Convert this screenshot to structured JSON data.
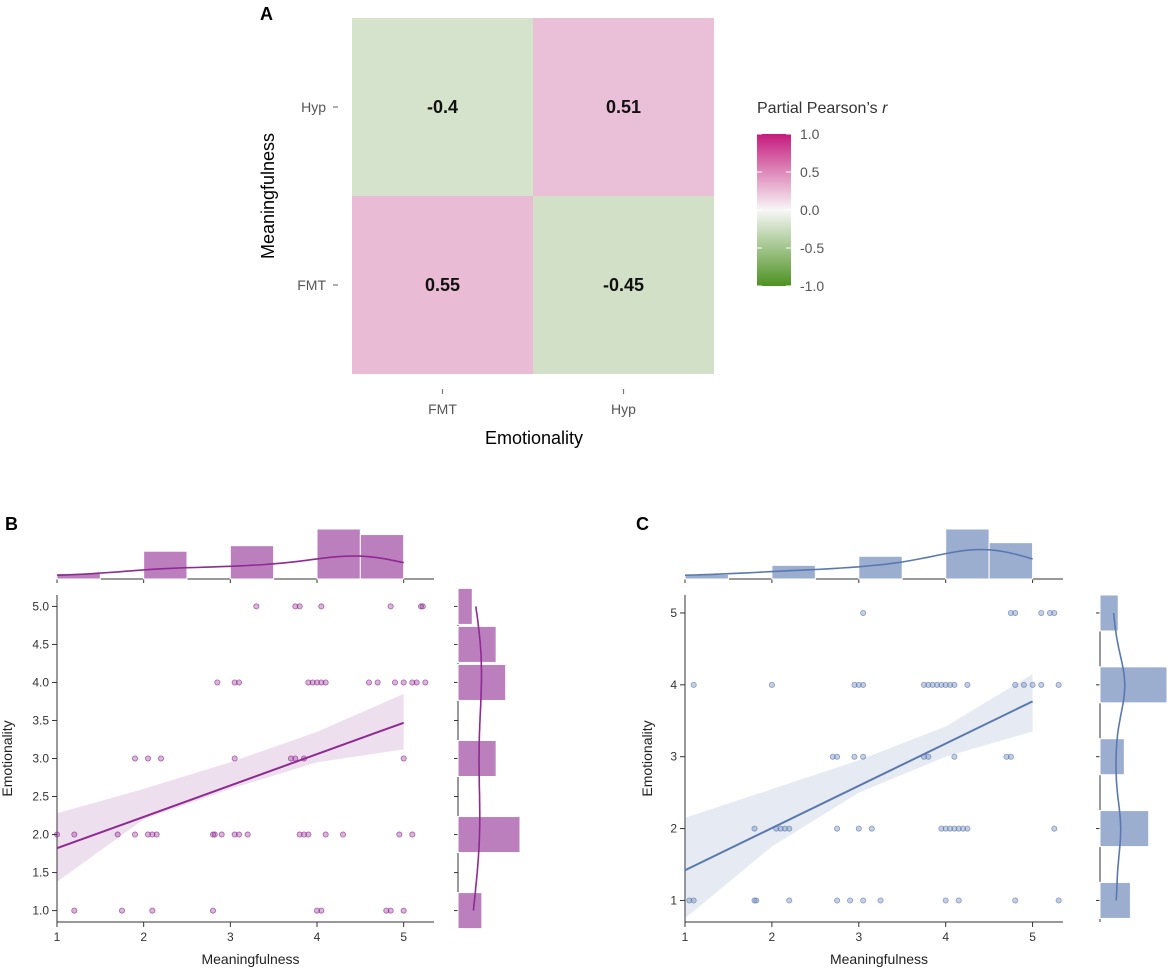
{
  "chart_data": [
    {
      "panel": "A",
      "type": "heatmap",
      "xlabel": "Emotionality",
      "ylabel": "Meaningfulness",
      "x_categories": [
        "FMT",
        "Hyp"
      ],
      "y_categories": [
        "FMT",
        "Hyp"
      ],
      "cells": [
        {
          "x": "FMT",
          "y": "Hyp",
          "value": -0.4,
          "label": "-0.4"
        },
        {
          "x": "Hyp",
          "y": "Hyp",
          "value": 0.51,
          "label": "0.51"
        },
        {
          "x": "FMT",
          "y": "FMT",
          "value": 0.55,
          "label": "0.55"
        },
        {
          "x": "Hyp",
          "y": "FMT",
          "value": -0.45,
          "label": "-0.45"
        }
      ],
      "legend": {
        "title": "Partial Pearson’s ",
        "title_italic": "r",
        "range": [
          -1.0,
          1.0
        ],
        "ticks": [
          "1.0",
          "0.5",
          "0.0",
          "-0.5",
          "-1.0"
        ],
        "colors": {
          "low": "#4d9221",
          "mid": "#f7f7f7",
          "high": "#c51b7d"
        }
      }
    },
    {
      "panel": "B",
      "type": "scatter",
      "xlabel": "Meaningfulness",
      "ylabel": "Emotionality",
      "xlim": [
        1,
        5.35
      ],
      "ylim": [
        0.85,
        5.15
      ],
      "xticks": [
        1,
        2,
        3,
        4,
        5
      ],
      "xtick_labels": [
        "1",
        "2",
        "3",
        "4",
        "5"
      ],
      "yticks": [
        1.0,
        1.5,
        2.0,
        2.5,
        3.0,
        3.5,
        4.0,
        4.5,
        5.0
      ],
      "ytick_labels": [
        "1.0",
        "1.5",
        "2.0",
        "2.5",
        "3.0",
        "3.5",
        "4.0",
        "4.5",
        "5.0"
      ],
      "color": "#8e2a91",
      "regression": {
        "x": [
          1,
          5
        ],
        "y": [
          1.82,
          3.47
        ]
      },
      "ci_upper": [
        [
          1,
          2.28
        ],
        [
          2,
          2.6
        ],
        [
          3,
          2.95
        ],
        [
          4,
          3.35
        ],
        [
          5,
          3.85
        ]
      ],
      "ci_lower": [
        [
          1,
          1.38
        ],
        [
          2,
          2.2
        ],
        [
          3,
          2.6
        ],
        [
          4,
          2.95
        ],
        [
          5,
          3.12
        ]
      ],
      "points": [
        [
          1.2,
          1
        ],
        [
          1.75,
          1
        ],
        [
          2.1,
          1
        ],
        [
          2.8,
          1
        ],
        [
          4.0,
          1
        ],
        [
          4.05,
          1
        ],
        [
          4.8,
          1
        ],
        [
          4.85,
          1
        ],
        [
          5.0,
          1
        ],
        [
          1.0,
          2
        ],
        [
          1.2,
          2
        ],
        [
          1.7,
          2
        ],
        [
          1.9,
          2
        ],
        [
          2.05,
          2
        ],
        [
          2.1,
          2
        ],
        [
          2.15,
          2
        ],
        [
          2.8,
          2
        ],
        [
          2.82,
          2
        ],
        [
          2.9,
          2
        ],
        [
          3.05,
          2
        ],
        [
          3.1,
          2
        ],
        [
          3.2,
          2
        ],
        [
          3.8,
          2
        ],
        [
          3.85,
          2
        ],
        [
          3.9,
          2
        ],
        [
          4.1,
          2
        ],
        [
          4.3,
          2
        ],
        [
          4.95,
          2
        ],
        [
          5.1,
          2
        ],
        [
          1.9,
          3
        ],
        [
          2.05,
          3
        ],
        [
          2.2,
          3
        ],
        [
          3.05,
          3
        ],
        [
          3.7,
          3
        ],
        [
          3.75,
          3
        ],
        [
          3.85,
          3
        ],
        [
          5.0,
          3
        ],
        [
          2.85,
          4
        ],
        [
          3.05,
          4
        ],
        [
          3.1,
          4
        ],
        [
          3.9,
          4
        ],
        [
          3.95,
          4
        ],
        [
          4.0,
          4
        ],
        [
          4.05,
          4
        ],
        [
          4.1,
          4
        ],
        [
          4.6,
          4
        ],
        [
          4.7,
          4
        ],
        [
          4.9,
          4
        ],
        [
          5.0,
          4
        ],
        [
          5.1,
          4
        ],
        [
          5.15,
          4
        ],
        [
          5.25,
          4
        ],
        [
          3.3,
          5
        ],
        [
          3.75,
          5
        ],
        [
          3.8,
          5
        ],
        [
          4.05,
          5
        ],
        [
          4.85,
          5
        ],
        [
          5.2,
          5
        ],
        [
          5.22,
          5
        ]
      ],
      "top_hist": {
        "bin_edges": [
          1,
          1.5,
          2,
          2.5,
          3,
          3.5,
          4,
          4.5,
          5
        ],
        "counts": [
          1,
          0,
          5,
          0,
          6,
          0,
          9,
          8
        ]
      },
      "right_hist": {
        "bins": [
          1.0,
          1.5,
          2.0,
          2.5,
          3.0,
          3.5,
          4.0,
          4.5,
          5.0
        ],
        "counts": [
          5,
          0,
          13,
          0,
          8,
          0,
          10,
          8,
          3
        ]
      }
    },
    {
      "panel": "C",
      "type": "scatter",
      "xlabel": "Meaningfulness",
      "ylabel": "Emotionality",
      "xlim": [
        1,
        5.35
      ],
      "ylim": [
        0.7,
        5.25
      ],
      "xticks": [
        1,
        2,
        3,
        4,
        5
      ],
      "xtick_labels": [
        "1",
        "2",
        "3",
        "4",
        "5"
      ],
      "yticks": [
        1,
        2,
        3,
        4,
        5
      ],
      "ytick_labels": [
        "1",
        "2",
        "3",
        "4",
        "5"
      ],
      "color": "#5a78b0",
      "regression": {
        "x": [
          1,
          5
        ],
        "y": [
          1.42,
          3.77
        ]
      },
      "ci_upper": [
        [
          1,
          2.15
        ],
        [
          2,
          2.55
        ],
        [
          3,
          2.95
        ],
        [
          4,
          3.42
        ],
        [
          5,
          4.15
        ]
      ],
      "ci_lower": [
        [
          1,
          0.75
        ],
        [
          2,
          1.75
        ],
        [
          3,
          2.5
        ],
        [
          4,
          3.0
        ],
        [
          5,
          3.35
        ]
      ],
      "points": [
        [
          1.05,
          1
        ],
        [
          1.1,
          1
        ],
        [
          1.8,
          1
        ],
        [
          1.82,
          1
        ],
        [
          2.2,
          1
        ],
        [
          2.75,
          1
        ],
        [
          2.9,
          1
        ],
        [
          3.05,
          1
        ],
        [
          3.25,
          1
        ],
        [
          4.0,
          1
        ],
        [
          4.15,
          1
        ],
        [
          4.8,
          1
        ],
        [
          5.3,
          1
        ],
        [
          1.8,
          2
        ],
        [
          2.05,
          2
        ],
        [
          2.1,
          2
        ],
        [
          2.15,
          2
        ],
        [
          2.2,
          2
        ],
        [
          2.75,
          2
        ],
        [
          3.0,
          2
        ],
        [
          3.15,
          2
        ],
        [
          3.95,
          2
        ],
        [
          4.0,
          2
        ],
        [
          4.05,
          2
        ],
        [
          4.1,
          2
        ],
        [
          4.15,
          2
        ],
        [
          4.2,
          2
        ],
        [
          4.25,
          2
        ],
        [
          5.25,
          2
        ],
        [
          2.7,
          3
        ],
        [
          2.75,
          3
        ],
        [
          2.95,
          3
        ],
        [
          3.05,
          3
        ],
        [
          3.75,
          3
        ],
        [
          3.8,
          3
        ],
        [
          4.1,
          3
        ],
        [
          4.7,
          3
        ],
        [
          4.75,
          3
        ],
        [
          1.1,
          4
        ],
        [
          2.0,
          4
        ],
        [
          2.95,
          4
        ],
        [
          3.0,
          4
        ],
        [
          3.05,
          4
        ],
        [
          3.75,
          4
        ],
        [
          3.8,
          4
        ],
        [
          3.85,
          4
        ],
        [
          3.9,
          4
        ],
        [
          3.95,
          4
        ],
        [
          4.0,
          4
        ],
        [
          4.05,
          4
        ],
        [
          4.1,
          4
        ],
        [
          4.25,
          4
        ],
        [
          4.8,
          4
        ],
        [
          4.9,
          4
        ],
        [
          5.0,
          4
        ],
        [
          5.1,
          4
        ],
        [
          5.3,
          4
        ],
        [
          3.05,
          5
        ],
        [
          4.75,
          5
        ],
        [
          4.8,
          5
        ],
        [
          5.1,
          5
        ],
        [
          5.2,
          5
        ],
        [
          5.25,
          5
        ]
      ],
      "top_hist": {
        "bin_edges": [
          1,
          1.5,
          2,
          2.5,
          3,
          3.5,
          4,
          4.5,
          5
        ],
        "counts": [
          1,
          0,
          3,
          0,
          5,
          0,
          11,
          8
        ]
      },
      "right_hist": {
        "bins": [
          1,
          2,
          3,
          4,
          5
        ],
        "counts": [
          5,
          8,
          4,
          11,
          3
        ]
      }
    }
  ],
  "labels": {
    "panel_a": "A",
    "panel_b": "B",
    "panel_c": "C"
  }
}
